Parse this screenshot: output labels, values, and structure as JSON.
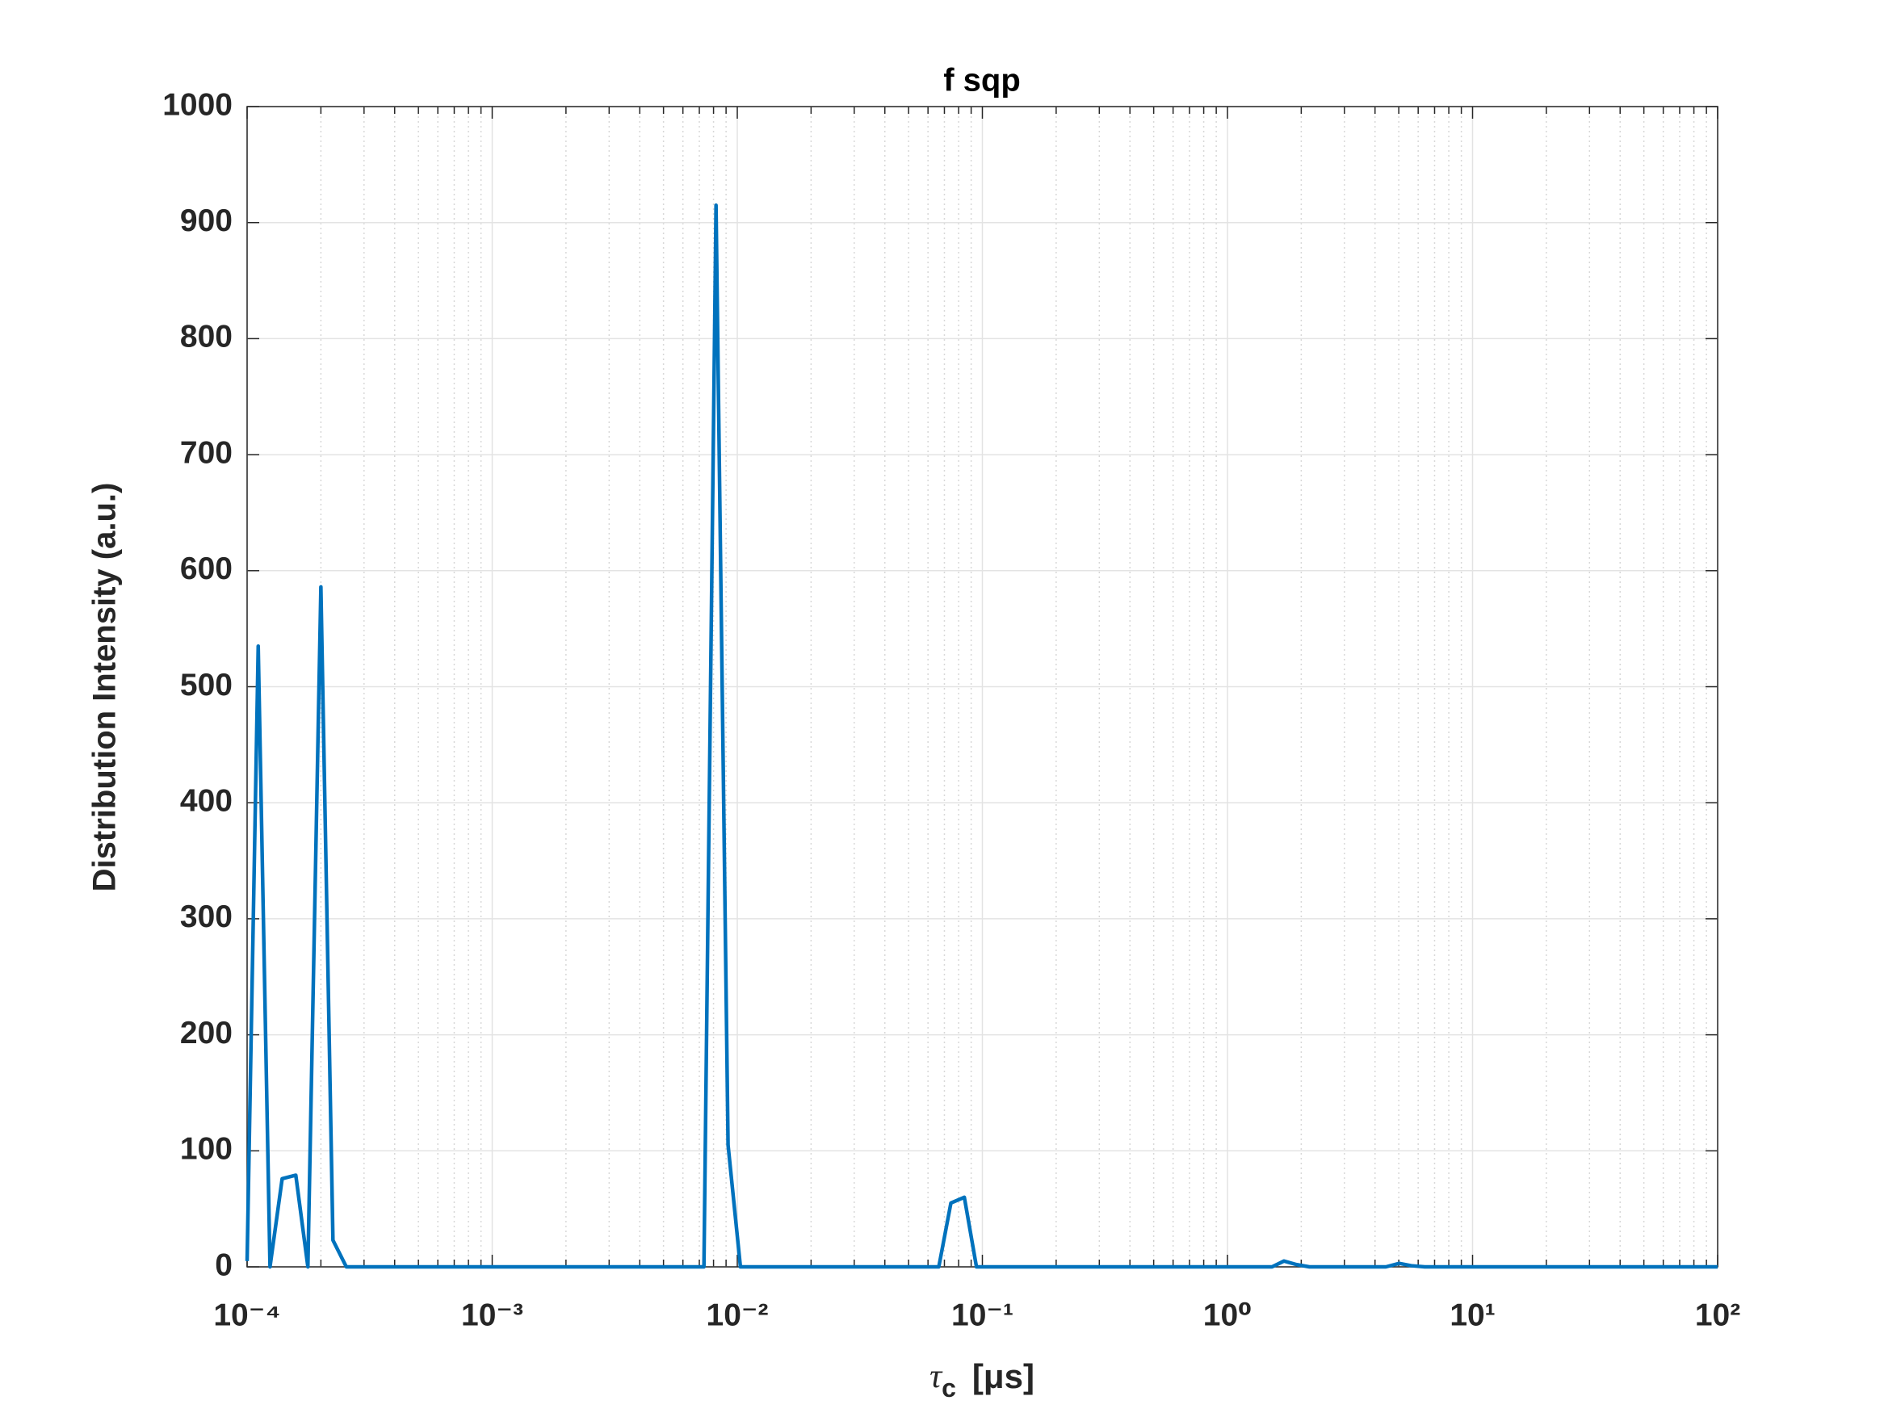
{
  "chart_data": {
    "type": "line",
    "title": "f sqp",
    "x_label": {
      "symbol": "τ",
      "subscript": "c",
      "unit": "[μs]"
    },
    "y_label": "Distribution Intensity (a.u.)",
    "x": [
      0.0001,
      0.000111,
      0.000124,
      0.000139,
      0.000158,
      0.000177,
      0.0002,
      0.000224,
      0.000254,
      0.00731,
      0.00819,
      0.00917,
      0.0103,
      0.0664,
      0.0744,
      0.0844,
      0.0946,
      1.52,
      1.7,
      1.91,
      2.16,
      4.43,
      5.02,
      5.62,
      6.38,
      100
    ],
    "series": [
      {
        "name": "f sqp",
        "color": "#0072bd",
        "values": [
          5,
          535,
          0,
          76,
          79,
          0,
          586,
          23,
          0,
          0,
          915,
          105,
          0,
          0,
          55,
          60,
          0,
          0,
          5,
          2,
          0,
          0,
          3,
          1,
          0,
          0
        ]
      }
    ],
    "xscale": "log",
    "xlim": [
      0.0001,
      100
    ],
    "xticks": [
      {
        "value": 0.0001,
        "label": "10⁻⁴"
      },
      {
        "value": 0.001,
        "label": "10⁻³"
      },
      {
        "value": 0.01,
        "label": "10⁻²"
      },
      {
        "value": 0.1,
        "label": "10⁻¹"
      },
      {
        "value": 1,
        "label": "10⁰"
      },
      {
        "value": 10,
        "label": "10¹"
      },
      {
        "value": 100,
        "label": "10²"
      }
    ],
    "ylim": [
      0,
      1000
    ],
    "yticks": [
      0,
      100,
      200,
      300,
      400,
      500,
      600,
      700,
      800,
      900,
      1000
    ],
    "grid": true,
    "minor_grid": true
  }
}
